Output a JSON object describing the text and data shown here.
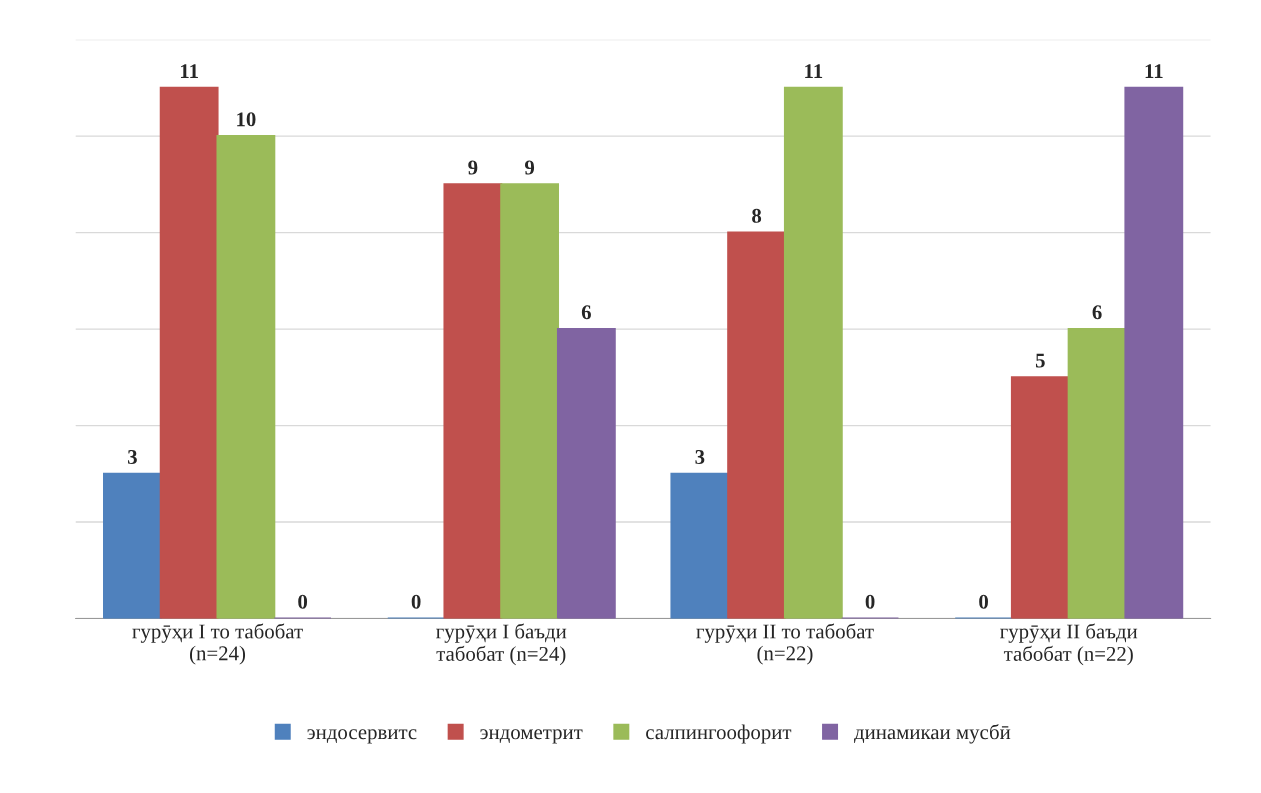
{
  "chart_data": {
    "type": "bar",
    "categories": [
      "гурӯҳи I то табобат\n(n=24)",
      "гурӯҳи I баъди\nтабобат (n=24)",
      "гурӯҳи II то табобат\n(n=22)",
      "гурӯҳи II баъди\nтабобат (n=22)"
    ],
    "series": [
      {
        "name": "эндосервитс",
        "color": "#4f81bd",
        "values": [
          3,
          0,
          3,
          0
        ]
      },
      {
        "name": "эндометрит",
        "color": "#c0504d",
        "values": [
          11,
          9,
          8,
          5
        ]
      },
      {
        "name": "салпингоофорит",
        "color": "#9bbb59",
        "values": [
          10,
          9,
          11,
          6
        ]
      },
      {
        "name": "динамикаи мусбӣ",
        "color": "#8064a2",
        "values": [
          0,
          6,
          0,
          11
        ]
      }
    ],
    "ylim": [
      0,
      12
    ],
    "yticks": [
      {
        "value": 0,
        "label": null
      },
      {
        "value": 2,
        "label": null
      },
      {
        "value": 4,
        "label": null
      },
      {
        "value": 6,
        "label": null
      },
      {
        "value": 8,
        "label": null
      },
      {
        "value": 10,
        "label": null
      },
      {
        "value": 12,
        "label": null
      }
    ],
    "tick_labels": "x",
    "grid": "y",
    "data_labels": true,
    "legend": "bottom"
  }
}
